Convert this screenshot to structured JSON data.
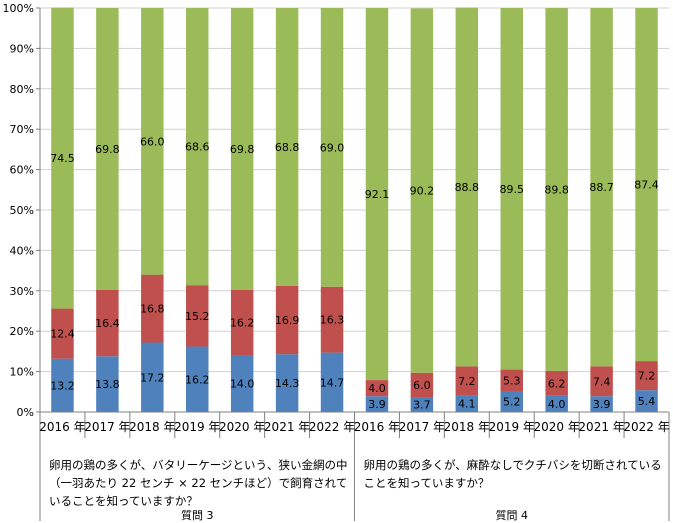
{
  "chart_data": {
    "type": "bar",
    "stacked": true,
    "percent": true,
    "ylim": [
      0,
      100
    ],
    "y_ticks": [
      "0%",
      "10%",
      "20%",
      "30%",
      "40%",
      "50%",
      "60%",
      "70%",
      "80%",
      "90%",
      "100%"
    ],
    "colors": {
      "blue": "#4f81bd",
      "red": "#c0504d",
      "green": "#9bbb59"
    },
    "groups": [
      {
        "name": "質問 3",
        "question": [
          "卵用の鶏の多くが、バタリーケージという、狭い金網の中",
          "（一羽あたり 22 センチ × 22 センチほど）で飼育されて",
          "いることを知っていますか？"
        ],
        "categories": [
          "2016 年",
          "2017 年",
          "2018 年",
          "2019 年",
          "2020 年",
          "2021 年",
          "2022 年"
        ],
        "series": [
          {
            "color": "#4f81bd",
            "values": [
              13.2,
              13.8,
              17.2,
              16.2,
              14.0,
              14.3,
              14.7
            ]
          },
          {
            "color": "#c0504d",
            "values": [
              12.4,
              16.4,
              16.8,
              15.2,
              16.2,
              16.9,
              16.3
            ]
          },
          {
            "color": "#9bbb59",
            "values": [
              74.5,
              69.8,
              66.0,
              68.6,
              69.8,
              68.8,
              69.0
            ]
          }
        ]
      },
      {
        "name": "質問 4",
        "question": [
          "卵用の鶏の多くが、麻酔なしでクチバシを切断されている",
          "ことを知っていますか？"
        ],
        "categories": [
          "2016 年",
          "2017 年",
          "2018 年",
          "2019 年",
          "2020 年",
          "2021 年",
          "2022 年"
        ],
        "series": [
          {
            "color": "#4f81bd",
            "values": [
              3.9,
              3.7,
              4.1,
              5.2,
              4.0,
              3.9,
              5.4
            ]
          },
          {
            "color": "#c0504d",
            "values": [
              4.0,
              6.0,
              7.2,
              5.3,
              6.2,
              7.4,
              7.2
            ]
          },
          {
            "color": "#9bbb59",
            "values": [
              92.1,
              90.2,
              88.8,
              89.5,
              89.8,
              88.7,
              87.4
            ]
          }
        ]
      }
    ]
  }
}
